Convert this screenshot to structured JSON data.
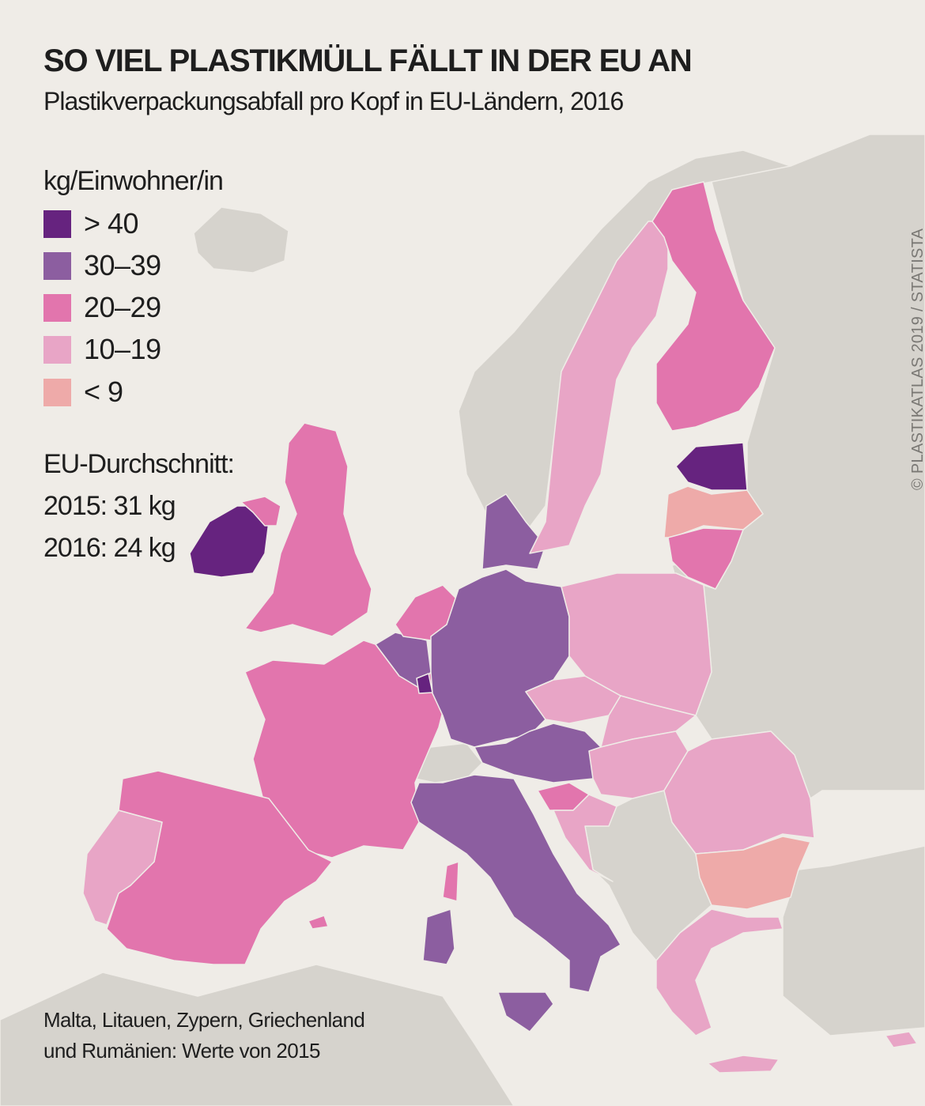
{
  "title": "SO VIEL PLASTIKMÜLL FÄLLT IN DER EU AN",
  "subtitle": "Plastikverpackungsabfall pro Kopf in EU-Ländern, 2016",
  "legend": {
    "title": "kg/Einwohner/in",
    "items": [
      {
        "label": "> 40",
        "color": "#66237f"
      },
      {
        "label": "30–39",
        "color": "#8c5ea0"
      },
      {
        "label": "20–29",
        "color": "#e275ad"
      },
      {
        "label": "10–19",
        "color": "#e8a5c6"
      },
      {
        "label": "< 9",
        "color": "#eeaaa9"
      }
    ]
  },
  "average": {
    "label": "EU-Durchschnitt:",
    "y2015": "2015: 31 kg",
    "y2016": "2016: 24 kg"
  },
  "note": {
    "line1": "Malta, Litauen, Zypern, Griechenland",
    "line2": "und Rumänien: Werte von 2015"
  },
  "credit": "© PLASTIKATLAS 2019 / STATISTA",
  "colors": {
    "background": "#efece7",
    "non_eu_land": "#d6d3cd"
  },
  "regions": {
    "ireland": 0,
    "estonia": 0,
    "luxembourg": 0,
    "germany": 1,
    "belgium": 1,
    "denmark": 1,
    "austria": 1,
    "italy": 1,
    "uk": 2,
    "france": 2,
    "spain": 2,
    "netherlands": 2,
    "finland": 2,
    "lithuania": 2,
    "slovenia": 2,
    "portugal": 3,
    "sweden": 3,
    "poland": 3,
    "czechia": 3,
    "slovakia": 3,
    "hungary": 3,
    "romania": 3,
    "croatia": 3,
    "greece": 3,
    "cyprus": 3,
    "latvia": 4,
    "bulgaria": 4
  }
}
